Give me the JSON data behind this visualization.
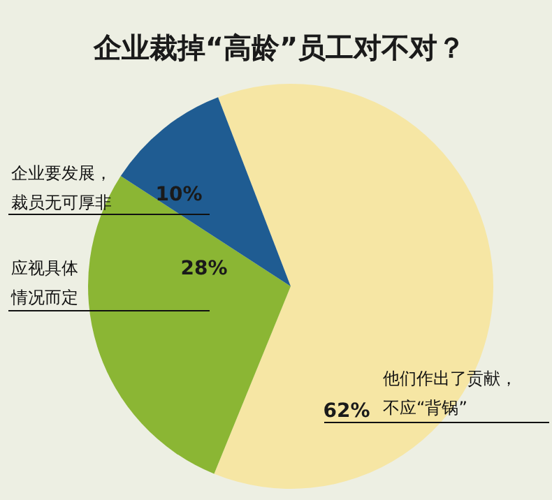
{
  "chart_data": {
    "type": "pie",
    "title": "企业裁掉“高龄”员工对不对？",
    "categories": [
      "他们作出了贡献，不应“背锅”",
      "应视具体情况而定",
      "企业要发展，裁员无可厚非"
    ],
    "values": [
      62,
      28,
      10
    ],
    "colors": [
      "#f6e6a4",
      "#8bb634",
      "#1f5c92"
    ],
    "value_labels": [
      "62%",
      "28%",
      "10%"
    ]
  }
}
